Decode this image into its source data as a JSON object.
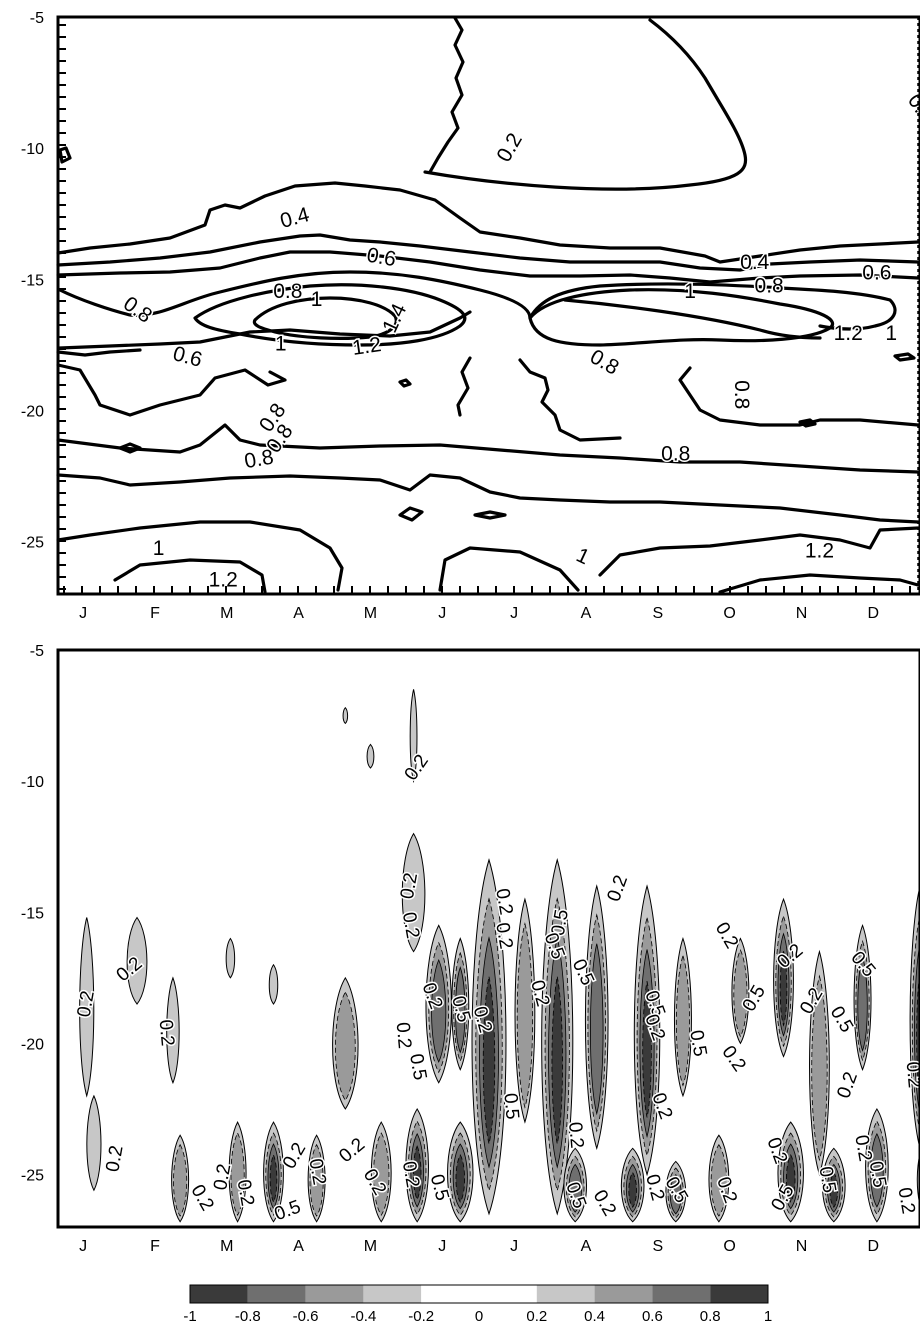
{
  "chart_data": [
    {
      "type": "contour",
      "x_tick_labels": [
        "J",
        "F",
        "M",
        "A",
        "M",
        "J",
        "J",
        "A",
        "S",
        "O",
        "N",
        "D"
      ],
      "y_tick_labels": [
        "-5",
        "-10",
        "-15",
        "-20",
        "-25"
      ],
      "ylim": [
        -27,
        -5
      ],
      "contour_labels": [
        {
          "text": "0.2",
          "month": 12.0,
          "lat": -8.5,
          "rotate": 55
        },
        {
          "text": "0.2",
          "month": 6.3,
          "lat": -10.0,
          "rotate": -60
        },
        {
          "text": "0.4",
          "month": 3.3,
          "lat": -12.7,
          "rotate": -15
        },
        {
          "text": "0.6",
          "month": 4.5,
          "lat": -14.2,
          "rotate": 10
        },
        {
          "text": "0.4",
          "month": 9.7,
          "lat": -14.4,
          "rotate": 0
        },
        {
          "text": "0.6",
          "month": 11.4,
          "lat": -14.8,
          "rotate": 0
        },
        {
          "text": "0.8",
          "month": 3.2,
          "lat": -15.5,
          "rotate": 0
        },
        {
          "text": "1",
          "month": 3.6,
          "lat": -15.8,
          "rotate": 0
        },
        {
          "text": "1.4",
          "month": 4.7,
          "lat": -16.5,
          "rotate": -65
        },
        {
          "text": "1.2",
          "month": 4.3,
          "lat": -17.6,
          "rotate": -8
        },
        {
          "text": "1",
          "month": 3.1,
          "lat": -17.5,
          "rotate": 0
        },
        {
          "text": "0.8",
          "month": 1.1,
          "lat": -16.2,
          "rotate": 35
        },
        {
          "text": "0.6",
          "month": 1.8,
          "lat": -18.0,
          "rotate": 15
        },
        {
          "text": "1",
          "month": 8.8,
          "lat": -15.5,
          "rotate": 0
        },
        {
          "text": "0.8",
          "month": 9.9,
          "lat": -15.3,
          "rotate": 0
        },
        {
          "text": "1.2",
          "month": 11.0,
          "lat": -17.1,
          "rotate": 0
        },
        {
          "text": "1",
          "month": 11.6,
          "lat": -17.1,
          "rotate": 0
        },
        {
          "text": "0.8",
          "month": 7.6,
          "lat": -18.2,
          "rotate": 30
        },
        {
          "text": "0.8",
          "month": 9.5,
          "lat": -19.4,
          "rotate": 90
        },
        {
          "text": "0.8",
          "month": 3.0,
          "lat": -20.3,
          "rotate": -55
        },
        {
          "text": "0.8",
          "month": 3.1,
          "lat": -21.1,
          "rotate": -55
        },
        {
          "text": "0.8",
          "month": 2.8,
          "lat": -21.9,
          "rotate": -10
        },
        {
          "text": "0.8",
          "month": 8.6,
          "lat": -21.7,
          "rotate": 0
        },
        {
          "text": "1",
          "month": 1.4,
          "lat": -25.3,
          "rotate": 0
        },
        {
          "text": "1.2",
          "month": 2.3,
          "lat": -26.5,
          "rotate": 0
        },
        {
          "text": "1",
          "month": 7.3,
          "lat": -25.6,
          "rotate": 25
        },
        {
          "text": "1.2",
          "month": 10.6,
          "lat": -25.4,
          "rotate": 0
        },
        {
          "text": "1",
          "month": 12.2,
          "lat": -25.2,
          "rotate": 0
        }
      ]
    },
    {
      "type": "filled-contour",
      "x_tick_labels": [
        "J",
        "F",
        "M",
        "A",
        "M",
        "J",
        "J",
        "A",
        "S",
        "O",
        "N",
        "D"
      ],
      "y_tick_labels": [
        "-5",
        "-10",
        "-15",
        "-20",
        "-25"
      ],
      "ylim": [
        -27,
        -5
      ],
      "colorbar": {
        "levels": [
          -1,
          -0.8,
          -0.6,
          -0.4,
          -0.2,
          0,
          0.2,
          0.4,
          0.6,
          0.8,
          1
        ],
        "tick_labels": [
          "-1",
          "-0.8",
          "-0.6",
          "-0.4",
          "-0.2",
          "0",
          "0.2",
          "0.4",
          "0.6",
          "0.8",
          "1"
        ],
        "colors": [
          "#3a3a3a",
          "#6f6f6f",
          "#9a9a9a",
          "#c7c7c7",
          "#ffffff",
          "#ffffff",
          "#c7c7c7",
          "#9a9a9a",
          "#6f6f6f",
          "#3a3a3a"
        ]
      },
      "contour_labels": [
        {
          "text": "0.2",
          "month": 5.0,
          "lat": -9.5,
          "rotate": -55
        },
        {
          "text": "0.2",
          "month": 4.9,
          "lat": -14.0,
          "rotate": -80
        },
        {
          "text": "0.2",
          "month": 4.9,
          "lat": -15.5,
          "rotate": 80
        },
        {
          "text": "0.2",
          "month": 6.2,
          "lat": -14.6,
          "rotate": 80
        },
        {
          "text": "0.2",
          "month": 6.2,
          "lat": -15.9,
          "rotate": 80
        },
        {
          "text": "0.5",
          "month": 7.0,
          "lat": -15.4,
          "rotate": -80
        },
        {
          "text": "0.5",
          "month": 6.9,
          "lat": -16.3,
          "rotate": 70
        },
        {
          "text": "0.5",
          "month": 7.3,
          "lat": -17.3,
          "rotate": 65
        },
        {
          "text": "0.2",
          "month": 7.8,
          "lat": -14.1,
          "rotate": -70
        },
        {
          "text": "0.2",
          "month": 9.3,
          "lat": -15.9,
          "rotate": 60
        },
        {
          "text": "0.2",
          "month": 10.2,
          "lat": -16.7,
          "rotate": -40
        },
        {
          "text": "0.5",
          "month": 11.2,
          "lat": -17.0,
          "rotate": 50
        },
        {
          "text": "0.2",
          "month": 0.4,
          "lat": -18.5,
          "rotate": -80
        },
        {
          "text": "0.2",
          "month": 1.0,
          "lat": -17.2,
          "rotate": -40
        },
        {
          "text": "0.2",
          "month": 1.5,
          "lat": -19.6,
          "rotate": 85
        },
        {
          "text": "0.2",
          "month": 5.2,
          "lat": -18.2,
          "rotate": 70
        },
        {
          "text": "0.5",
          "month": 5.6,
          "lat": -18.7,
          "rotate": 75
        },
        {
          "text": "0.2",
          "month": 5.9,
          "lat": -19.1,
          "rotate": 75
        },
        {
          "text": "0.2",
          "month": 4.8,
          "lat": -19.7,
          "rotate": 85
        },
        {
          "text": "0.5",
          "month": 5.0,
          "lat": -20.9,
          "rotate": 80
        },
        {
          "text": "0.2",
          "month": 6.7,
          "lat": -18.1,
          "rotate": 75
        },
        {
          "text": "0.5",
          "month": 6.3,
          "lat": -22.4,
          "rotate": 85
        },
        {
          "text": "0.2",
          "month": 7.2,
          "lat": -23.5,
          "rotate": 85
        },
        {
          "text": "0.5",
          "month": 8.3,
          "lat": -18.5,
          "rotate": 70
        },
        {
          "text": "0.2",
          "month": 8.3,
          "lat": -19.4,
          "rotate": 70
        },
        {
          "text": "0.5",
          "month": 8.9,
          "lat": -20.0,
          "rotate": 80
        },
        {
          "text": "0.2",
          "month": 9.4,
          "lat": -20.6,
          "rotate": 55
        },
        {
          "text": "0.2",
          "month": 8.4,
          "lat": -22.4,
          "rotate": 70
        },
        {
          "text": "0.5",
          "month": 9.7,
          "lat": -18.3,
          "rotate": -60
        },
        {
          "text": "0.2",
          "month": 10.5,
          "lat": -18.4,
          "rotate": -60
        },
        {
          "text": "0.5",
          "month": 10.9,
          "lat": -19.1,
          "rotate": 60
        },
        {
          "text": "0.2",
          "month": 11.0,
          "lat": -21.6,
          "rotate": -70
        },
        {
          "text": "0.2",
          "month": 11.9,
          "lat": -21.2,
          "rotate": 85
        },
        {
          "text": "0.2",
          "month": 12.3,
          "lat": -21.1,
          "rotate": 80
        },
        {
          "text": "0.5",
          "month": 12.3,
          "lat": -22.5,
          "rotate": -65
        },
        {
          "text": "0.2",
          "month": 0.8,
          "lat": -24.4,
          "rotate": -80
        },
        {
          "text": "0.2",
          "month": 2.0,
          "lat": -25.9,
          "rotate": 60
        },
        {
          "text": "0.2",
          "month": 2.3,
          "lat": -25.1,
          "rotate": -80
        },
        {
          "text": "0.2",
          "month": 2.6,
          "lat": -25.7,
          "rotate": 80
        },
        {
          "text": "0.5",
          "month": 3.2,
          "lat": -26.4,
          "rotate": -20
        },
        {
          "text": "0.2",
          "month": 3.3,
          "lat": -24.3,
          "rotate": -60
        },
        {
          "text": "0.2",
          "month": 3.6,
          "lat": -24.9,
          "rotate": 80
        },
        {
          "text": "0.2",
          "month": 4.1,
          "lat": -24.1,
          "rotate": -40
        },
        {
          "text": "0.2",
          "month": 4.4,
          "lat": -25.3,
          "rotate": 60
        },
        {
          "text": "0.2",
          "month": 4.9,
          "lat": -25.0,
          "rotate": 80
        },
        {
          "text": "0.5",
          "month": 5.3,
          "lat": -25.5,
          "rotate": 75
        },
        {
          "text": "0.5",
          "month": 7.2,
          "lat": -25.8,
          "rotate": 70
        },
        {
          "text": "0.2",
          "month": 7.6,
          "lat": -26.1,
          "rotate": 60
        },
        {
          "text": "0.2",
          "month": 8.3,
          "lat": -25.5,
          "rotate": 75
        },
        {
          "text": "0.5",
          "month": 8.6,
          "lat": -25.6,
          "rotate": 60
        },
        {
          "text": "0.2",
          "month": 9.3,
          "lat": -25.6,
          "rotate": 70
        },
        {
          "text": "0.2",
          "month": 10.0,
          "lat": -24.1,
          "rotate": 70
        },
        {
          "text": "0.5",
          "month": 10.1,
          "lat": -25.9,
          "rotate": -60
        },
        {
          "text": "0.5",
          "month": 10.7,
          "lat": -25.2,
          "rotate": 80
        },
        {
          "text": "0.5",
          "month": 11.4,
          "lat": -25.0,
          "rotate": 80
        },
        {
          "text": "0.2",
          "month": 11.2,
          "lat": -24.0,
          "rotate": 80
        },
        {
          "text": "0.2",
          "month": 11.8,
          "lat": -26.0,
          "rotate": 80
        },
        {
          "text": "0.2",
          "month": 12.1,
          "lat": -24.5,
          "rotate": 80
        },
        {
          "text": "0.5",
          "month": 12.4,
          "lat": -25.6,
          "rotate": 70
        }
      ]
    }
  ]
}
